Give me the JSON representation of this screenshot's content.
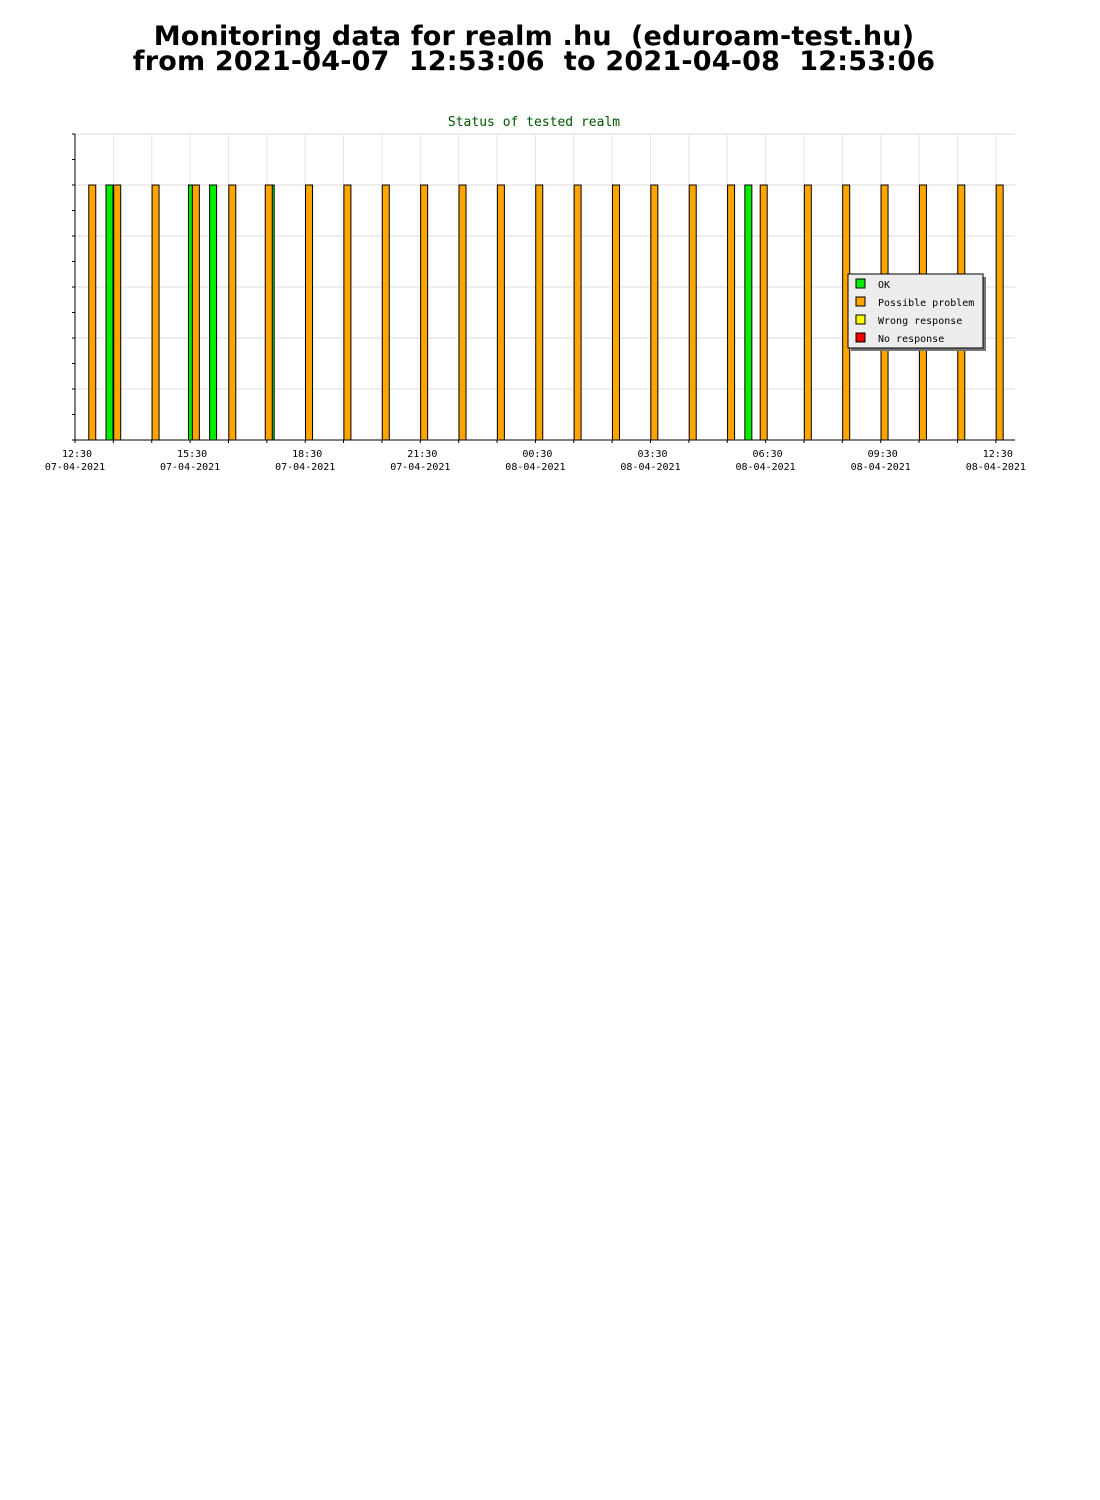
{
  "page": {
    "title_line1": "Monitoring data for realm .hu  (eduroam-test.hu)",
    "title_line2": "from 2021-04-07  12:53:06  to 2021-04-08  12:53:06"
  },
  "chart_data": {
    "type": "bar",
    "title": "Status of tested realm",
    "xlabel": "",
    "ylabel": "",
    "ylim": [
      0,
      6
    ],
    "x_range_hours": [
      0,
      24.5
    ],
    "grid": true,
    "legend_position": "right",
    "x_ticks": [
      {
        "hours": 0,
        "time": "12:30",
        "date": "07-04-2021"
      },
      {
        "hours": 3,
        "time": "15:30",
        "date": "07-04-2021"
      },
      {
        "hours": 6,
        "time": "18:30",
        "date": "07-04-2021"
      },
      {
        "hours": 9,
        "time": "21:30",
        "date": "07-04-2021"
      },
      {
        "hours": 12,
        "time": "00:30",
        "date": "08-04-2021"
      },
      {
        "hours": 15,
        "time": "03:30",
        "date": "08-04-2021"
      },
      {
        "hours": 18,
        "time": "06:30",
        "date": "08-04-2021"
      },
      {
        "hours": 21,
        "time": "09:30",
        "date": "08-04-2021"
      },
      {
        "hours": 24,
        "time": "12:30",
        "date": "08-04-2021"
      }
    ],
    "series": [
      {
        "name": "OK",
        "color": "#00ee00",
        "x": [
          0.9,
          3.05,
          3.6,
          5.1,
          17.55
        ],
        "values": [
          5,
          5,
          5,
          5,
          5
        ]
      },
      {
        "name": "Possible problem",
        "color": "#ffa500",
        "x": [
          0.45,
          1.1,
          2.1,
          3.15,
          4.1,
          5.05,
          6.1,
          7.1,
          8.1,
          9.1,
          10.1,
          11.1,
          12.1,
          13.1,
          14.1,
          15.1,
          16.1,
          17.1,
          17.95,
          19.1,
          20.1,
          21.1,
          22.1,
          23.1,
          24.1
        ],
        "values": [
          5,
          5,
          5,
          5,
          5,
          5,
          5,
          5,
          5,
          5,
          5,
          5,
          5,
          5,
          5,
          5,
          5,
          5,
          5,
          5,
          5,
          5,
          5,
          5,
          5
        ]
      },
      {
        "name": "Wrong response",
        "color": "#ffff00",
        "x": [],
        "values": []
      },
      {
        "name": "No response",
        "color": "#ee0000",
        "x": [],
        "values": []
      }
    ]
  }
}
